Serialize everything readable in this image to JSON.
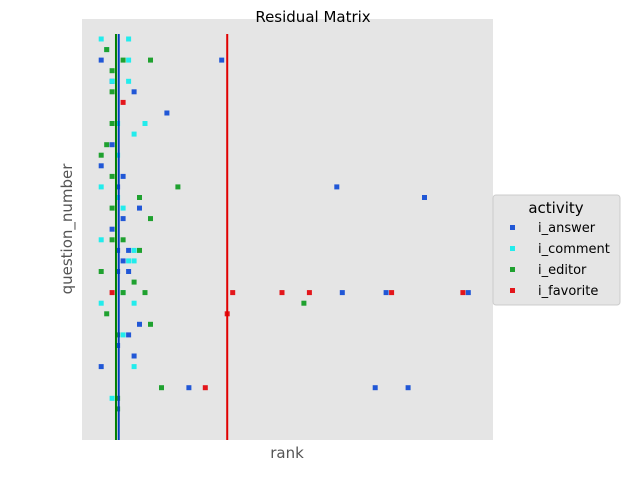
{
  "chart_data": {
    "type": "scatter",
    "title": "Residual Matrix",
    "xlabel": "rank",
    "ylabel": "question_number",
    "xlim": [
      0,
      75
    ],
    "ylim": [
      37,
      0
    ],
    "grid": false,
    "legend": {
      "title": "activity",
      "placement": "right"
    },
    "series": [
      {
        "name": "i_answer",
        "color": "#2157d6",
        "points": [
          [
            3.5,
            2
          ],
          [
            25.5,
            2
          ],
          [
            5.5,
            4
          ],
          [
            9.5,
            5
          ],
          [
            15.5,
            7
          ],
          [
            5.5,
            10
          ],
          [
            3.5,
            12
          ],
          [
            7.5,
            13
          ],
          [
            6.5,
            14
          ],
          [
            46.5,
            14
          ],
          [
            62.5,
            15
          ],
          [
            10.5,
            16
          ],
          [
            7.5,
            17
          ],
          [
            5.5,
            18
          ],
          [
            6.5,
            20
          ],
          [
            8.5,
            20
          ],
          [
            7.5,
            21
          ],
          [
            6.5,
            22
          ],
          [
            8.5,
            22
          ],
          [
            47.5,
            24
          ],
          [
            55.5,
            24
          ],
          [
            70.5,
            24
          ],
          [
            10.5,
            27
          ],
          [
            8.5,
            28
          ],
          [
            6.5,
            29
          ],
          [
            9.5,
            30
          ],
          [
            3.5,
            31
          ],
          [
            19.5,
            33
          ],
          [
            53.5,
            33
          ],
          [
            59.5,
            33
          ]
        ]
      },
      {
        "name": "i_comment",
        "color": "#22ecec",
        "points": [
          [
            3.5,
            0
          ],
          [
            8.5,
            0
          ],
          [
            4.5,
            1
          ],
          [
            8.5,
            2
          ],
          [
            5.5,
            4
          ],
          [
            8.5,
            4
          ],
          [
            6.5,
            8
          ],
          [
            11.5,
            8
          ],
          [
            9.5,
            9
          ],
          [
            6.5,
            11
          ],
          [
            3.5,
            14
          ],
          [
            6.5,
            15
          ],
          [
            7.5,
            16
          ],
          [
            3.5,
            19
          ],
          [
            9.5,
            20
          ],
          [
            8.5,
            21
          ],
          [
            9.5,
            21
          ],
          [
            7.5,
            24
          ],
          [
            3.5,
            25
          ],
          [
            9.5,
            25
          ],
          [
            7.5,
            28
          ],
          [
            9.5,
            31
          ],
          [
            5.5,
            34
          ]
        ]
      },
      {
        "name": "i_editor",
        "color": "#1fa12f",
        "points": [
          [
            4.5,
            1
          ],
          [
            7.5,
            2
          ],
          [
            12.5,
            2
          ],
          [
            5.5,
            3
          ],
          [
            5.5,
            5
          ],
          [
            5.5,
            8
          ],
          [
            4.5,
            10
          ],
          [
            3.5,
            11
          ],
          [
            5.5,
            13
          ],
          [
            17.5,
            14
          ],
          [
            10.5,
            15
          ],
          [
            5.5,
            16
          ],
          [
            12.5,
            17
          ],
          [
            5.5,
            19
          ],
          [
            7.5,
            19
          ],
          [
            10.5,
            20
          ],
          [
            3.5,
            22
          ],
          [
            9.5,
            23
          ],
          [
            7.5,
            24
          ],
          [
            11.5,
            24
          ],
          [
            40.5,
            25
          ],
          [
            4.5,
            26
          ],
          [
            12.5,
            27
          ],
          [
            6.5,
            28
          ],
          [
            14.5,
            33
          ],
          [
            6.5,
            34
          ],
          [
            6.5,
            35
          ]
        ]
      },
      {
        "name": "i_favorite",
        "color": "#e3161b",
        "points": [
          [
            7.5,
            6
          ],
          [
            5.5,
            24
          ],
          [
            27.5,
            24
          ],
          [
            36.5,
            24
          ],
          [
            41.5,
            24
          ],
          [
            56.5,
            24
          ],
          [
            69.5,
            24
          ],
          [
            26.5,
            26
          ],
          [
            22.5,
            33
          ]
        ]
      }
    ],
    "reference_lines": [
      {
        "x": 6.2,
        "color": "#008000"
      },
      {
        "x": 6.7,
        "color": "#003fbf"
      },
      {
        "x": 26.5,
        "color": "#e00000"
      }
    ]
  }
}
